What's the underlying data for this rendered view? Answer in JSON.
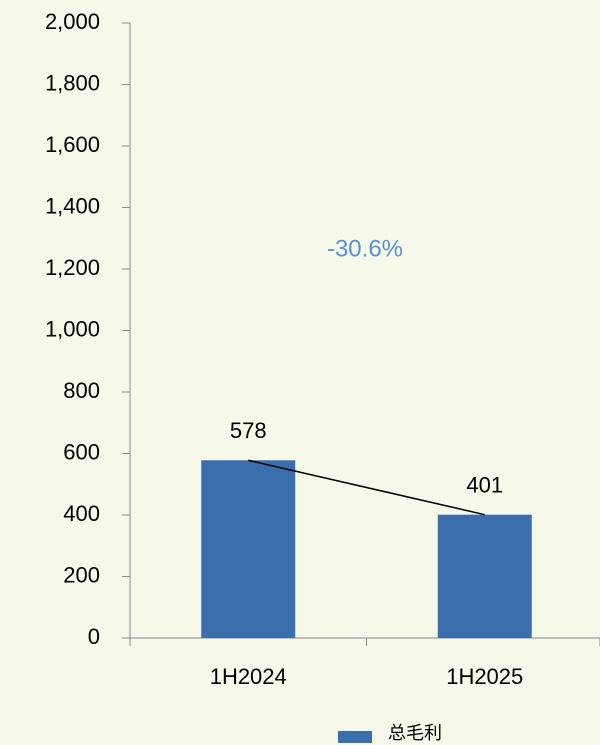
{
  "chart_data": {
    "type": "bar",
    "categories": [
      "1H2024",
      "1H2025"
    ],
    "series": [
      {
        "name": "总毛利",
        "color": "#3a6ead",
        "values": [
          578,
          401
        ]
      }
    ],
    "ylim": [
      0,
      2000
    ],
    "yticks": [
      0,
      200,
      400,
      600,
      800,
      {
        "value": 1000,
        "label": "1,000"
      },
      {
        "value": 1200,
        "label": "1,200"
      },
      {
        "value": 1400,
        "label": "1,400"
      },
      {
        "value": 1600,
        "label": "1,600"
      },
      {
        "value": 1800,
        "label": "1,800"
      },
      {
        "value": 2000,
        "label": "2,000"
      }
    ],
    "annotations": [
      "-30.6%"
    ],
    "legend": "bottom"
  }
}
